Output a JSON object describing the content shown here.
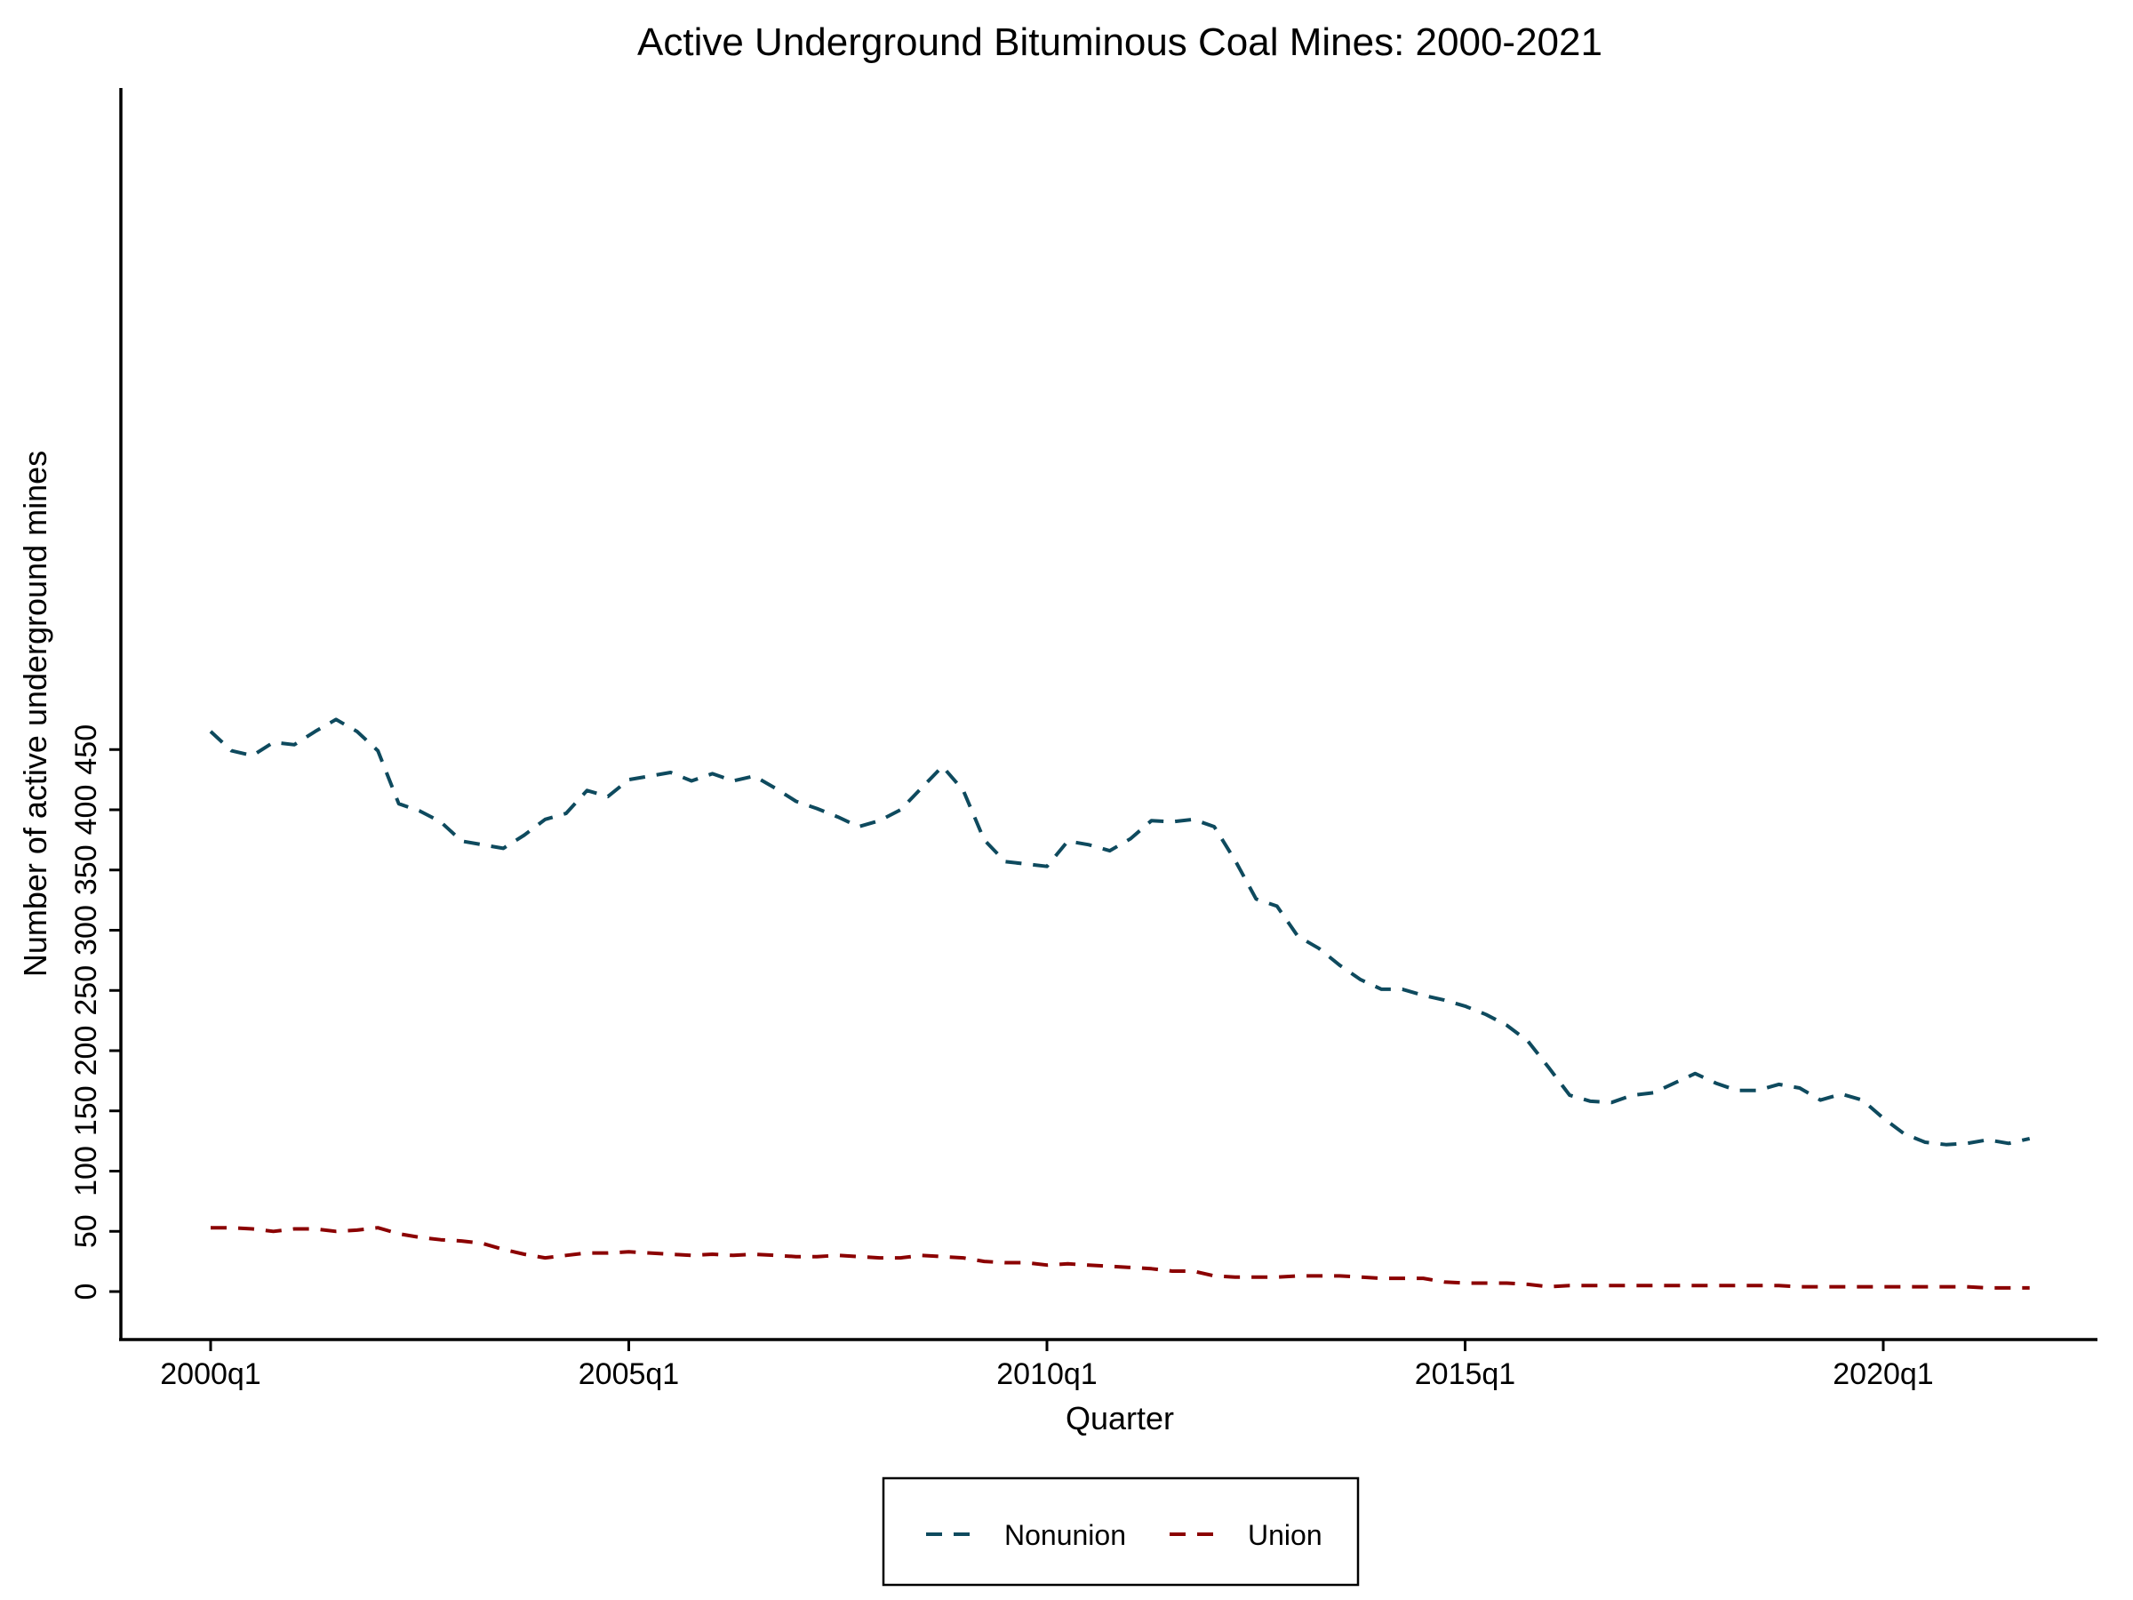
{
  "chart_data": {
    "type": "line",
    "title": "Active Underground Bituminous Coal Mines: 2000-2021",
    "xlabel": "Quarter",
    "ylabel": "Number of active underground mines",
    "x_tick_labels": [
      "2000q1",
      "2005q1",
      "2010q1",
      "2015q1",
      "2020q1"
    ],
    "y_tick_labels": [
      "0",
      "50",
      "100",
      "150",
      "200",
      "250",
      "300",
      "350",
      "400",
      "450"
    ],
    "ylim": [
      -20,
      500
    ],
    "grid": false,
    "legend_position": "bottom",
    "x_start": "2000q1",
    "series": [
      {
        "name": "Nonunion",
        "color": "#0e4a5e",
        "values": [
          465,
          449,
          445,
          456,
          454,
          465,
          475,
          465,
          449,
          405,
          399,
          390,
          374,
          371,
          368,
          379,
          392,
          397,
          416,
          411,
          425,
          428,
          431,
          424,
          430,
          424,
          428,
          418,
          407,
          401,
          394,
          386,
          391,
          400,
          418,
          436,
          416,
          375,
          357,
          355,
          353,
          374,
          371,
          366,
          376,
          391,
          390,
          392,
          386,
          358,
          326,
          320,
          295,
          285,
          271,
          259,
          251,
          251,
          246,
          242,
          237,
          230,
          221,
          208,
          186,
          163,
          158,
          157,
          163,
          165,
          173,
          181,
          173,
          167,
          167,
          172,
          169,
          159,
          164,
          159,
          144,
          131,
          124,
          122,
          123,
          126,
          123,
          127
        ]
      },
      {
        "name": "Union",
        "color": "#8b0000",
        "values": [
          53,
          53,
          52,
          50,
          52,
          52,
          50,
          51,
          53,
          48,
          45,
          43,
          42,
          40,
          35,
          31,
          28,
          30,
          32,
          32,
          33,
          32,
          31,
          30,
          31,
          30,
          31,
          30,
          29,
          29,
          30,
          29,
          28,
          28,
          30,
          29,
          28,
          25,
          24,
          24,
          22,
          23,
          22,
          21,
          20,
          19,
          17,
          17,
          13,
          12,
          12,
          12,
          13,
          13,
          13,
          12,
          11,
          11,
          11,
          8,
          7,
          7,
          7,
          6,
          4,
          5,
          5,
          5,
          5,
          5,
          5,
          5,
          5,
          5,
          5,
          5,
          4,
          4,
          4,
          4,
          4,
          4,
          4,
          4,
          4,
          3,
          3,
          3
        ]
      }
    ]
  }
}
